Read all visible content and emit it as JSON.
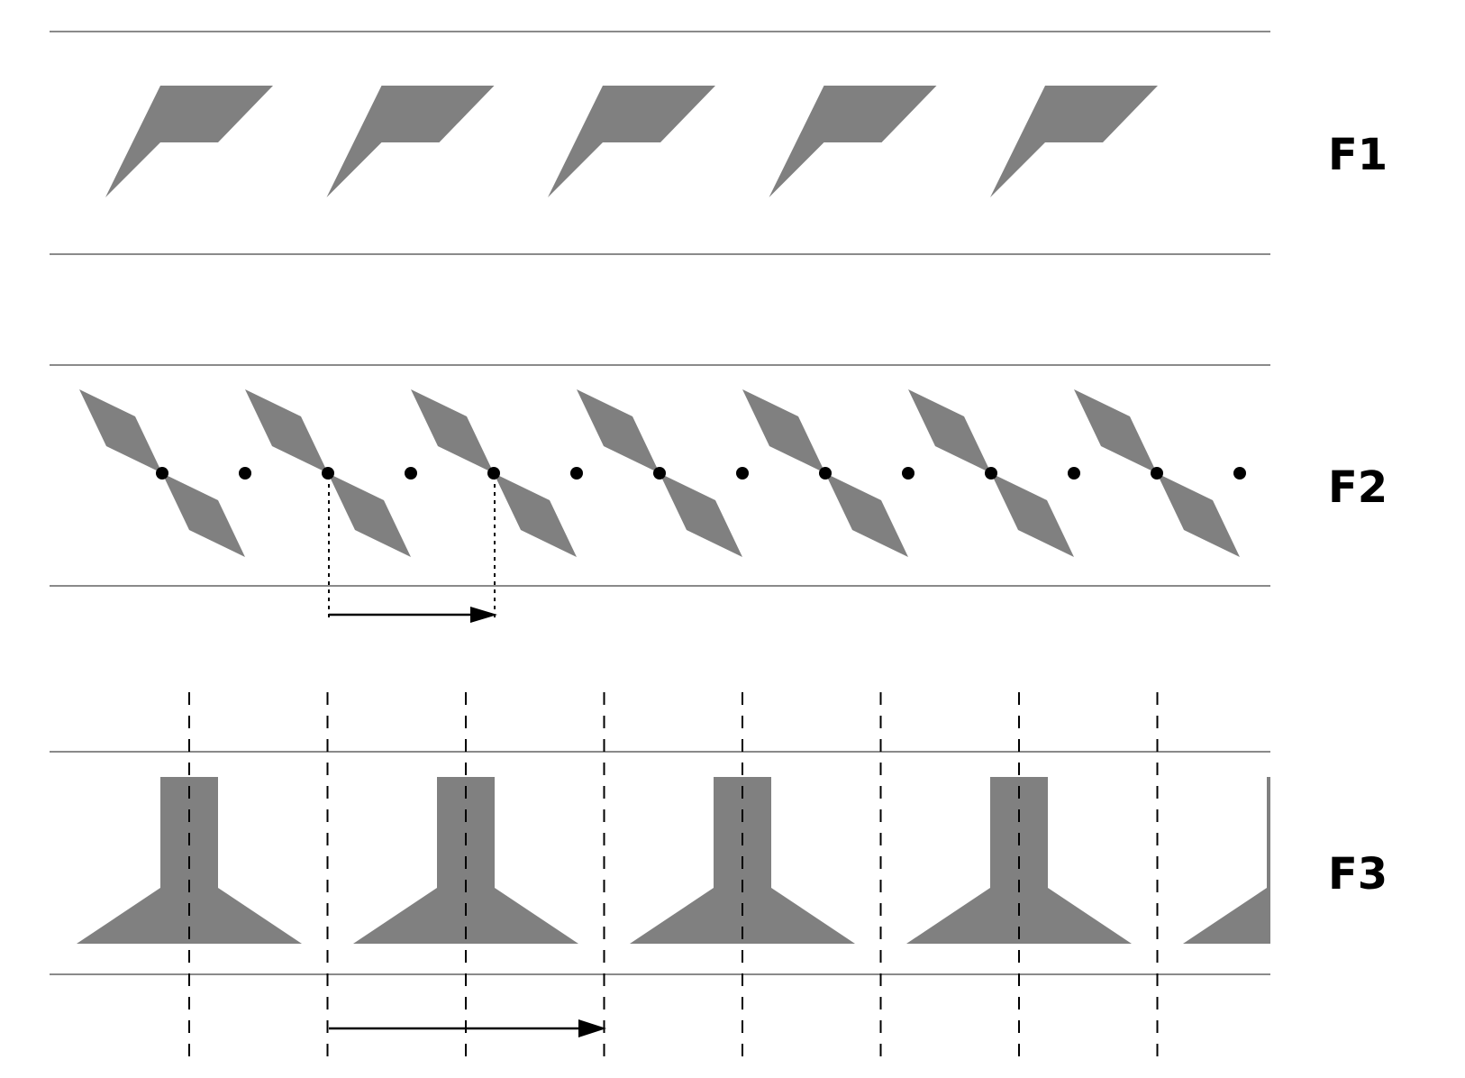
{
  "figure": {
    "colors": {
      "motif": "#808080",
      "rule": "#8a8a8a",
      "ink": "#000000",
      "background": "#ffffff"
    },
    "bands": [
      {
        "id": "F1",
        "label": "F1",
        "motif": "p-shape",
        "repeats": 5,
        "shift_arrow": false
      },
      {
        "id": "F2",
        "label": "F2",
        "motif": "bowtie-with-centers",
        "repeats": 7,
        "shift_arrow": true
      },
      {
        "id": "F3",
        "label": "F3",
        "motif": "t-shape-with-mirror-axes",
        "repeats": 5,
        "partial_last": true,
        "shift_arrow": true
      }
    ]
  }
}
